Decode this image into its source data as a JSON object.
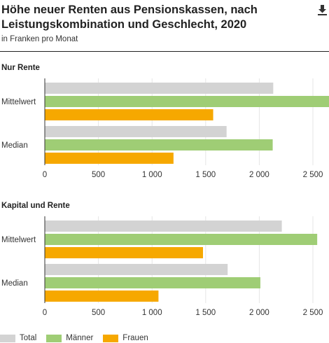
{
  "header": {
    "title": "Höhe neuer Renten aus Pensionskassen, nach Leistungskombination und Geschlecht, 2020",
    "subtitle": "in Franken pro Monat",
    "download_icon": "download-icon"
  },
  "colors": {
    "Total": "#d3d3d3",
    "Männer": "#9fcd75",
    "Frauen": "#f6a800",
    "grid": "#e5e5e5",
    "axis": "#333333"
  },
  "legend": [
    {
      "label": "Total",
      "color": "#d3d3d3"
    },
    {
      "label": "Männer",
      "color": "#9fcd75"
    },
    {
      "label": "Frauen",
      "color": "#f6a800"
    }
  ],
  "chart_data": [
    {
      "type": "bar",
      "orientation": "horizontal",
      "title": "Nur Rente",
      "categories": [
        "Mittelwert",
        "Median"
      ],
      "series": [
        {
          "name": "Total",
          "values": [
            2130,
            1695
          ]
        },
        {
          "name": "Männer",
          "values": [
            2650,
            2125
          ]
        },
        {
          "name": "Frauen",
          "values": [
            1570,
            1200
          ]
        }
      ],
      "xlim": [
        0,
        2650
      ],
      "ticks": [
        0,
        500,
        1000,
        1500,
        2000,
        2500
      ],
      "tick_labels": [
        "0",
        "500",
        "1 000",
        "1 500",
        "2 000",
        "2 500"
      ],
      "grid": true
    },
    {
      "type": "bar",
      "orientation": "horizontal",
      "title": "Kapital und Rente",
      "categories": [
        "Mittelwert",
        "Median"
      ],
      "series": [
        {
          "name": "Total",
          "values": [
            2210,
            1705
          ]
        },
        {
          "name": "Männer",
          "values": [
            2540,
            2010
          ]
        },
        {
          "name": "Frauen",
          "values": [
            1475,
            1060
          ]
        }
      ],
      "xlim": [
        0,
        2650
      ],
      "ticks": [
        0,
        500,
        1000,
        1500,
        2000,
        2500
      ],
      "tick_labels": [
        "0",
        "500",
        "1 000",
        "1 500",
        "2 000",
        "2 500"
      ],
      "grid": true
    }
  ]
}
